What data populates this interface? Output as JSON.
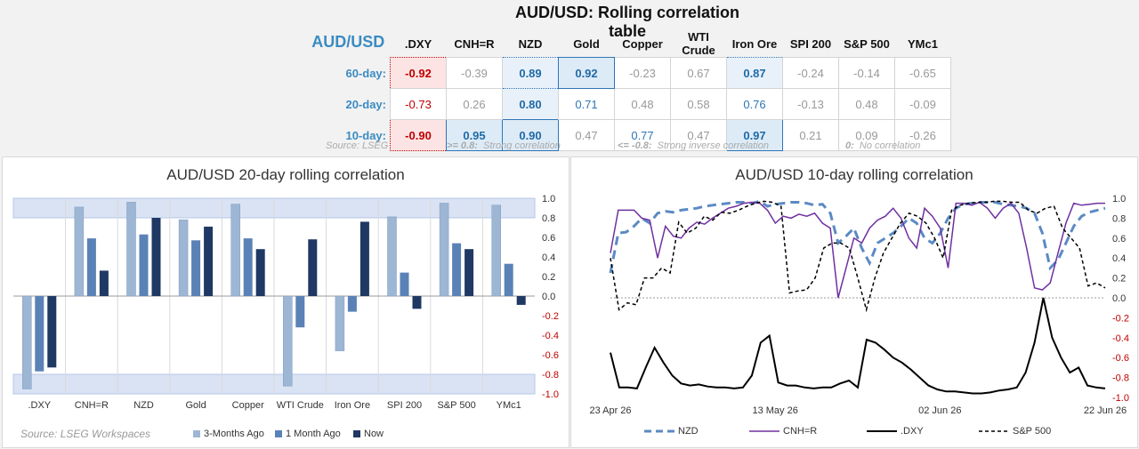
{
  "header": {
    "title": "AUD/USD: Rolling correlation table",
    "corner_label": "AUD/USD",
    "source": "Source: LSEG",
    "legend": [
      {
        "key": ">= 0.8:",
        "text": "Strong correlation"
      },
      {
        "key": "<= -0.8:",
        "text": "Strong inverse correlation"
      },
      {
        "key": "0:",
        "text": "No correlation"
      }
    ]
  },
  "table": {
    "columns": [
      ".DXY",
      "CNH=R",
      "NZD",
      "Gold",
      "Copper",
      "WTI Crude",
      "Iron Ore",
      "SPI 200",
      "S&P 500",
      "YMc1"
    ],
    "rows": [
      {
        "label": "60-day:",
        "values": [
          "-0.92",
          "-0.39",
          "0.89",
          "0.92",
          "-0.23",
          "0.67",
          "0.87",
          "-0.24",
          "-0.14",
          "-0.65"
        ]
      },
      {
        "label": "20-day:",
        "values": [
          "-0.73",
          "0.26",
          "0.80",
          "0.71",
          "0.48",
          "0.58",
          "0.76",
          "-0.13",
          "0.48",
          "-0.09"
        ]
      },
      {
        "label": "10-day:",
        "values": [
          "-0.90",
          "0.95",
          "0.90",
          "0.47",
          "0.77",
          "0.47",
          "0.97",
          "0.21",
          "0.09",
          "-0.26"
        ]
      }
    ]
  },
  "left_panel": {
    "title": "AUD/USD 20-day rolling correlation",
    "source": "Source: LSEG Workspaces",
    "legend": [
      "3-Months Ago",
      "1 Month Ago",
      "Now"
    ]
  },
  "right_panel": {
    "title": "AUD/USD 10-day rolling correlation",
    "legend": [
      "NZD",
      "CNH=R",
      ".DXY",
      "S&P 500"
    ]
  },
  "colors": {
    "accent": "#3b8bc2",
    "negative": "#c00000",
    "bar_3m": "#9db6d3",
    "bar_1m": "#5b82b6",
    "bar_now": "#1f3864",
    "nzd": "#5b8ac4",
    "cnh": "#7030a0",
    "dxy": "#000000",
    "sp500": "#000000",
    "band": "#dae3f3"
  },
  "chart_data": [
    {
      "type": "bar",
      "title": "AUD/USD 20-day rolling correlation",
      "categories": [
        ".DXY",
        "CNH=R",
        "NZD",
        "Gold",
        "Copper",
        "WTI Crude",
        "Iron Ore",
        "SPI 200",
        "S&P 500",
        "YMc1"
      ],
      "series": [
        {
          "name": "3-Months Ago",
          "values": [
            -0.95,
            0.91,
            0.96,
            0.78,
            0.94,
            -0.92,
            -0.56,
            0.81,
            0.95,
            0.93
          ]
        },
        {
          "name": "1 Month Ago",
          "values": [
            -0.77,
            0.59,
            0.63,
            0.57,
            0.59,
            -0.32,
            -0.16,
            0.24,
            0.54,
            0.33
          ]
        },
        {
          "name": "Now",
          "values": [
            -0.73,
            0.26,
            0.8,
            0.71,
            0.48,
            0.58,
            0.76,
            -0.13,
            0.48,
            -0.09
          ]
        }
      ],
      "ylim": [
        -1.0,
        1.0
      ],
      "yticks": [
        "1.0",
        "0.8",
        "0.6",
        "0.4",
        "0.2",
        "0.0",
        "-0.2",
        "-0.4",
        "-0.6",
        "-0.8",
        "-1.0"
      ],
      "bands": [
        [
          0.8,
          1.0
        ],
        [
          -1.0,
          -0.8
        ]
      ]
    },
    {
      "type": "line",
      "title": "AUD/USD 10-day rolling correlation",
      "x_ticks": [
        "23 Apr 26",
        "13 May 26",
        "02 Jun 26",
        "22 Jun 26"
      ],
      "x_start": "23 Apr 26",
      "x_end": "22 Jun 26",
      "ylim": [
        -1.0,
        1.0
      ],
      "yticks": [
        "1.0",
        "0.8",
        "0.6",
        "0.4",
        "0.2",
        "0.0",
        "-0.2",
        "-0.4",
        "-0.6",
        "-0.8",
        "-1.0"
      ],
      "series": [
        {
          "name": "NZD",
          "style": "dashed",
          "values": [
            0.25,
            0.65,
            0.66,
            0.72,
            0.8,
            0.75,
            0.85,
            0.87,
            0.86,
            0.88,
            0.89,
            0.9,
            0.92,
            0.93,
            0.94,
            0.95,
            0.96,
            0.96,
            0.95,
            0.97,
            0.92,
            0.94,
            0.95,
            0.96,
            0.96,
            0.95,
            0.93,
            0.94,
            0.85,
            0.55,
            0.62,
            0.7,
            0.5,
            0.35,
            0.55,
            0.6,
            0.65,
            0.72,
            0.8,
            0.75,
            0.6,
            0.55,
            0.65,
            0.8,
            0.9,
            0.94,
            0.95,
            0.96,
            0.96,
            0.96,
            0.94,
            0.93,
            0.92,
            0.9,
            0.85,
            0.65,
            0.3,
            0.38,
            0.55,
            0.72,
            0.82,
            0.86,
            0.88,
            0.9
          ]
        },
        {
          "name": "CNH=R",
          "style": "solid",
          "values": [
            0.45,
            0.88,
            0.88,
            0.88,
            0.8,
            0.78,
            0.4,
            0.72,
            0.62,
            0.6,
            0.7,
            0.76,
            0.74,
            0.8,
            0.85,
            0.9,
            0.92,
            0.95,
            0.96,
            0.95,
            0.88,
            0.75,
            0.82,
            0.8,
            0.84,
            0.82,
            0.85,
            0.75,
            0.7,
            0.0,
            0.3,
            0.6,
            0.55,
            0.7,
            0.78,
            0.82,
            0.9,
            0.8,
            0.6,
            0.5,
            0.9,
            0.82,
            0.7,
            0.3,
            0.95,
            0.95,
            0.93,
            0.96,
            0.9,
            0.8,
            0.9,
            0.95,
            0.85,
            0.5,
            0.1,
            0.08,
            0.15,
            0.45,
            0.75,
            0.95,
            0.93,
            0.94,
            0.95,
            0.95
          ]
        },
        {
          "name": ".DXY",
          "style": "solid",
          "values": [
            -0.55,
            -0.9,
            -0.9,
            -0.91,
            -0.7,
            -0.5,
            -0.65,
            -0.78,
            -0.86,
            -0.88,
            -0.87,
            -0.89,
            -0.9,
            -0.9,
            -0.91,
            -0.9,
            -0.78,
            -0.45,
            -0.38,
            -0.85,
            -0.88,
            -0.88,
            -0.9,
            -0.91,
            -0.9,
            -0.9,
            -0.86,
            -0.83,
            -0.9,
            -0.42,
            -0.45,
            -0.52,
            -0.6,
            -0.65,
            -0.72,
            -0.8,
            -0.88,
            -0.92,
            -0.94,
            -0.94,
            -0.95,
            -0.96,
            -0.96,
            -0.95,
            -0.93,
            -0.92,
            -0.9,
            -0.75,
            -0.45,
            0.0,
            -0.4,
            -0.6,
            -0.75,
            -0.7,
            -0.88,
            -0.9,
            -0.91
          ]
        },
        {
          "name": "S&P 500",
          "style": "dashed",
          "values": [
            0.4,
            -0.12,
            -0.05,
            -0.07,
            0.2,
            0.2,
            0.3,
            0.25,
            0.76,
            0.65,
            0.7,
            0.82,
            0.78,
            0.86,
            0.85,
            0.88,
            0.92,
            0.95,
            0.97,
            0.96,
            0.92,
            0.05,
            0.07,
            0.08,
            0.2,
            0.5,
            0.55,
            0.55,
            0.5,
            0.2,
            -0.12,
            0.2,
            0.45,
            0.6,
            0.75,
            0.85,
            0.82,
            0.75,
            0.6,
            0.4,
            0.88,
            0.93,
            0.95,
            0.96,
            0.96,
            0.97,
            0.97,
            0.96,
            0.96,
            0.88,
            0.85,
            0.9,
            0.92,
            0.7,
            0.6,
            0.5,
            0.12,
            0.15,
            0.1
          ]
        }
      ]
    }
  ]
}
